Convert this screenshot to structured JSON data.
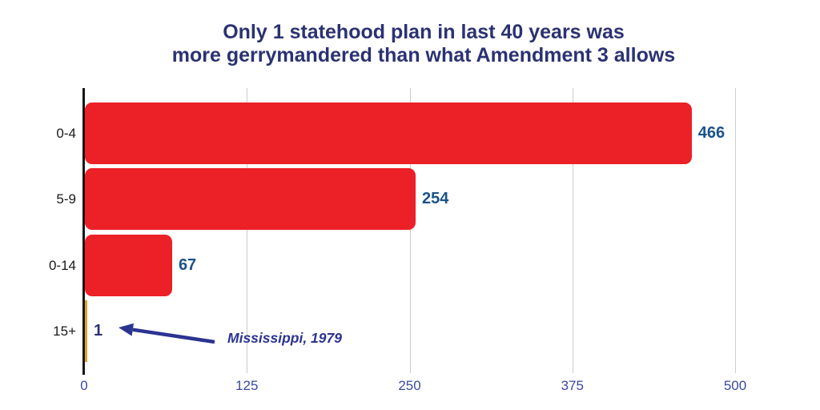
{
  "title": {
    "line1": "Only 1 statehood plan in last 40 years was",
    "line2": "more gerrymandered than what Amendment 3 allows"
  },
  "chart_data": {
    "type": "bar",
    "orientation": "horizontal",
    "title": "Only 1 statehood plan in last 40 years was more gerrymandered than what Amendment 3 allows",
    "categories": [
      "0-4",
      "5-9",
      "0-14",
      "15+"
    ],
    "values": [
      466,
      254,
      67,
      1
    ],
    "value_labels": [
      "466",
      "254",
      "67",
      "1"
    ],
    "bar_colors": [
      "#EC2027",
      "#EC2027",
      "#EC2027",
      "#D9A520"
    ],
    "value_label_colors": [
      "#1A5389",
      "#1A5389",
      "#1A5389",
      "#2B3272"
    ],
    "x_ticks": [
      "0",
      "125",
      "250",
      "375",
      "500"
    ],
    "x_tick_values": [
      0,
      125,
      250,
      375,
      500
    ],
    "xlim": [
      0,
      500
    ],
    "grid": "vertical",
    "legend": "none",
    "annotation": {
      "text": "Mississippi, 1979",
      "points_to_category": "15+",
      "points_to_value": 1
    }
  },
  "colors": {
    "title": "#2B3272",
    "bar_red": "#EC2027",
    "bar_gold": "#D9A520",
    "value_blue": "#1A5389",
    "axis": "#161616",
    "gridline": "#CCCCCC",
    "tick_label": "#3B4AA0",
    "category_label": "#1A1A1A",
    "annotation": "#2B3490"
  }
}
